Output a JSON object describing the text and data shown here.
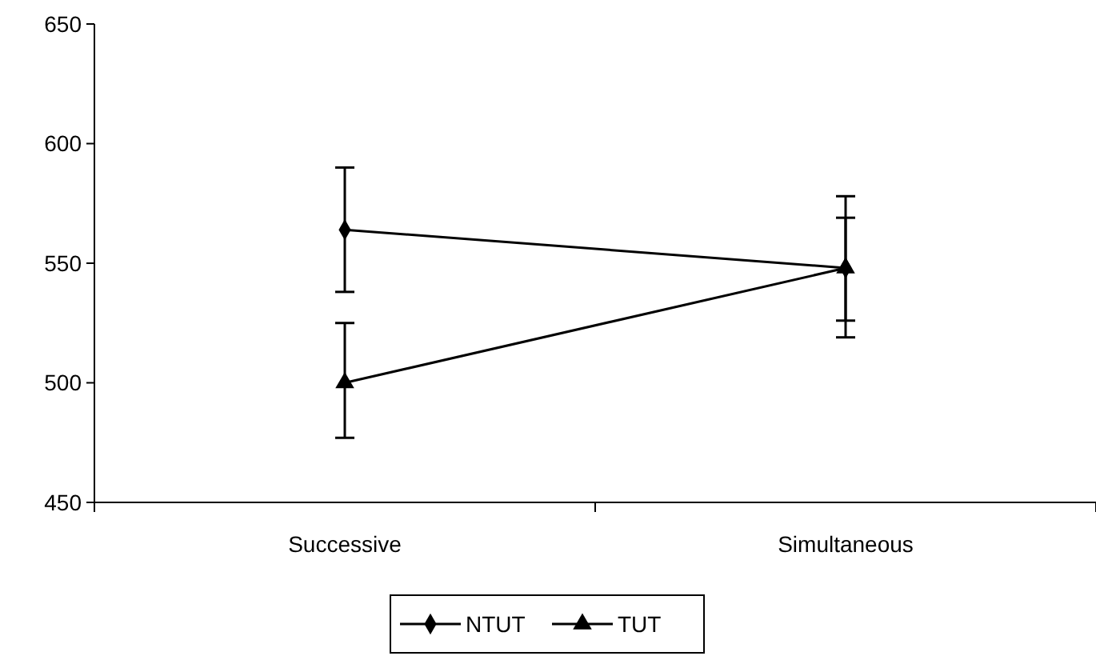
{
  "chart_data": {
    "type": "line",
    "categories": [
      "Successive",
      "Simultaneous"
    ],
    "series": [
      {
        "name": "NTUT",
        "color": "#000000",
        "marker": "diamond",
        "values": [
          564,
          548
        ],
        "errors": [
          [
            538,
            590
          ],
          [
            519,
            578
          ]
        ]
      },
      {
        "name": "TUT",
        "color": "#000000",
        "marker": "triangle",
        "values": [
          500,
          548
        ],
        "errors": [
          [
            477,
            525
          ],
          [
            526,
            569
          ]
        ]
      }
    ],
    "ylim": [
      450,
      650
    ],
    "yticks": [
      450,
      500,
      550,
      600,
      650
    ],
    "grid": false,
    "legend": "bottom"
  }
}
